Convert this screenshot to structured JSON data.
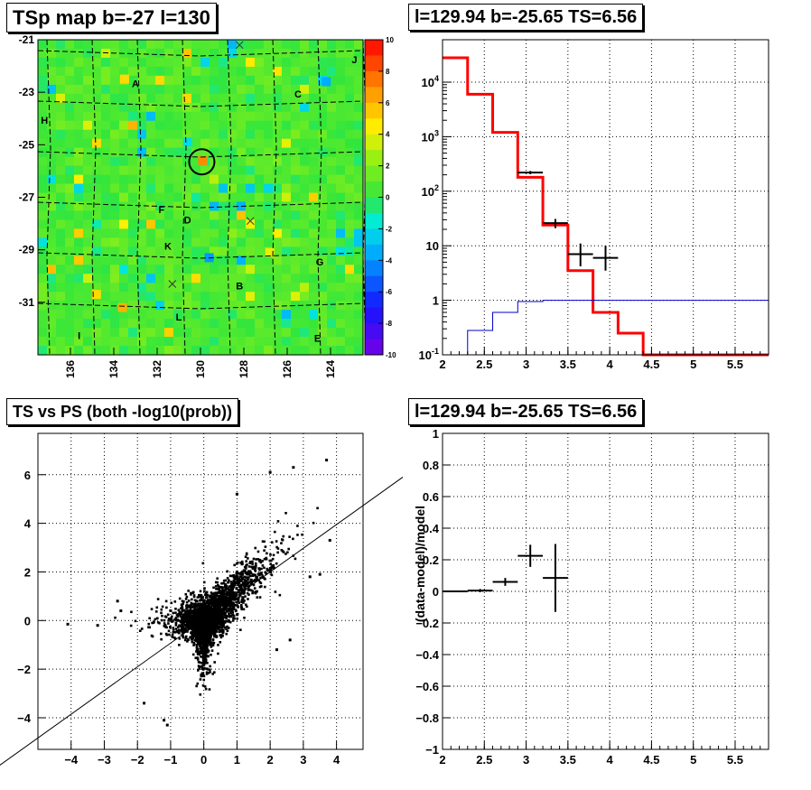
{
  "titles": {
    "map": "TSp map b=-27 l=130",
    "spectrum": "l=129.94 b=-25.65 TS=6.56",
    "scatter": "TS vs PS (both -log10(prob))",
    "residual": "l=129.94 b=-25.65 TS=6.56"
  },
  "chart_data": [
    {
      "type": "heatmap",
      "title": "TSp map b=-27 l=130",
      "x_ticks": [
        "136",
        "134",
        "132",
        "130",
        "128",
        "126",
        "124"
      ],
      "y_ticks": [
        "-21",
        "-23",
        "-25",
        "-27",
        "-29",
        "-31"
      ],
      "x_range": [
        137.5,
        122.5
      ],
      "y_range": [
        -21,
        -33
      ],
      "colorbar_ticks": [
        "10",
        "8",
        "6",
        "4",
        "2",
        "0",
        "-2",
        "-4",
        "-6",
        "-8",
        "-10"
      ],
      "colorbar_range": [
        -10,
        10
      ],
      "source_labels": [
        {
          "label": "A",
          "l": 133.0,
          "b": -22.8
        },
        {
          "label": "C",
          "l": 125.5,
          "b": -23.2
        },
        {
          "label": "H",
          "l": 137.2,
          "b": -24.2
        },
        {
          "label": "J",
          "l": 122.9,
          "b": -21.9
        },
        {
          "label": "F",
          "l": 131.8,
          "b": -27.6
        },
        {
          "label": "D",
          "l": 130.6,
          "b": -28.0
        },
        {
          "label": "K",
          "l": 131.5,
          "b": -29.0
        },
        {
          "label": "G",
          "l": 124.5,
          "b": -29.6
        },
        {
          "label": "B",
          "l": 128.2,
          "b": -30.5
        },
        {
          "label": "L",
          "l": 131.0,
          "b": -31.7
        },
        {
          "label": "I",
          "l": 135.6,
          "b": -32.4
        },
        {
          "label": "E",
          "l": 124.6,
          "b": -32.5
        }
      ],
      "crosses": [
        {
          "l": 128.2,
          "b": -21.2
        },
        {
          "l": 127.7,
          "b": -27.9
        },
        {
          "l": 131.3,
          "b": -30.3
        }
      ],
      "circle_center": {
        "l": 129.94,
        "b": -25.65
      }
    },
    {
      "type": "line",
      "title": "l=129.94 b=-25.65 TS=6.56",
      "y_scale": "log",
      "xlim": [
        2,
        5.9
      ],
      "ylim": [
        0.1,
        60000
      ],
      "x_ticks": [
        "2",
        "2.5",
        "3",
        "3.5",
        "4",
        "4.5",
        "5",
        "5.5"
      ],
      "y_ticks": [
        "10^-1",
        "1",
        "10",
        "10^2",
        "10^3",
        "10^4"
      ],
      "series": [
        {
          "color": "#ff0000",
          "edges": [
            2.0,
            2.3,
            2.6,
            2.9,
            3.2,
            3.5,
            3.8,
            4.1,
            4.4,
            5.9
          ],
          "values": [
            28000,
            6000,
            1200,
            180,
            24,
            3.5,
            0.6,
            0.25,
            0.1
          ]
        },
        {
          "color": "#0000cc",
          "edges": [
            2.0,
            2.3,
            2.6,
            2.9,
            3.2,
            3.5,
            3.8,
            4.1,
            4.4,
            5.9
          ],
          "values": [
            0.1,
            0.28,
            0.6,
            0.95,
            1.0,
            1.0,
            1.0,
            1.0,
            1.0
          ]
        }
      ],
      "points": [
        {
          "x": 3.05,
          "y": 220,
          "xerr": 0.15,
          "ylo": 205,
          "yhi": 235
        },
        {
          "x": 3.35,
          "y": 26,
          "xerr": 0.15,
          "ylo": 21,
          "yhi": 31
        },
        {
          "x": 3.65,
          "y": 7.0,
          "xerr": 0.15,
          "ylo": 4.2,
          "yhi": 11
        },
        {
          "x": 3.95,
          "y": 6.0,
          "xerr": 0.15,
          "ylo": 3.5,
          "yhi": 10
        }
      ]
    },
    {
      "type": "scatter",
      "title": "TS vs PS (both -log10(prob))",
      "xlim": [
        -5,
        4.8
      ],
      "ylim": [
        -5.3,
        7.7
      ],
      "x_ticks": [
        "-4",
        "-3",
        "-2",
        "-1",
        "0",
        "1",
        "2",
        "3",
        "4"
      ],
      "y_ticks": [
        "-4",
        "-2",
        "0",
        "2",
        "4",
        "6"
      ],
      "diagonal": {
        "x1": -6.2,
        "y1": -6.0,
        "x2": 6.0,
        "y2": 5.9
      },
      "outliers": [
        [
          -4.1,
          -0.15
        ],
        [
          -3.2,
          -0.2
        ],
        [
          -2.5,
          0.4
        ],
        [
          -2.6,
          0.8
        ],
        [
          -1.8,
          -3.4
        ],
        [
          -1.2,
          -4.1
        ],
        [
          -1.1,
          -4.3
        ],
        [
          1.0,
          5.2
        ],
        [
          2.0,
          6.1
        ],
        [
          2.7,
          6.3
        ],
        [
          3.7,
          6.6
        ],
        [
          3.8,
          3.3
        ],
        [
          3.5,
          1.9
        ],
        [
          3.2,
          1.8
        ],
        [
          2.6,
          -0.8
        ],
        [
          2.2,
          -1.2
        ]
      ]
    },
    {
      "type": "scatter",
      "title": "l=129.94 b=-25.65 TS=6.56",
      "ylabel": "(data-model)/model",
      "xlim": [
        2,
        5.9
      ],
      "ylim": [
        -1,
        1
      ],
      "x_ticks": [
        "2",
        "2.5",
        "3",
        "3.5",
        "4",
        "4.5",
        "5",
        "5.5"
      ],
      "y_ticks": [
        "-1",
        "-0.8",
        "-0.6",
        "-0.4",
        "-0.2",
        "0",
        "0.2",
        "0.4",
        "0.6",
        "0.8",
        "1"
      ],
      "points": [
        {
          "x": 2.15,
          "y": 0.0,
          "xerr": 0.15,
          "yerr": 0.004
        },
        {
          "x": 2.45,
          "y": 0.005,
          "xerr": 0.15,
          "yerr": 0.01
        },
        {
          "x": 2.75,
          "y": 0.06,
          "xerr": 0.15,
          "yerr": 0.025
        },
        {
          "x": 3.05,
          "y": 0.225,
          "xerr": 0.15,
          "yerr": 0.07
        },
        {
          "x": 3.35,
          "y": 0.085,
          "xerr": 0.15,
          "yerr": 0.215
        }
      ]
    }
  ]
}
